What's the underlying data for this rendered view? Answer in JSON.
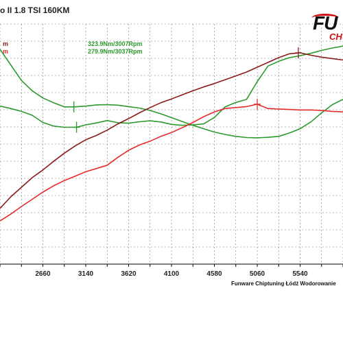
{
  "title": "o II  1.8 TSI 160KM",
  "footer": "Funware Chiptuning Łódź Wodorowanie",
  "logo": {
    "text1": "FU",
    "text2": "CH"
  },
  "annotations": {
    "green_peak_1": "323.9Nm/3007Rpm",
    "green_peak_2": "279.9Nm/3037Rpm",
    "left_clip_1": "m",
    "left_clip_2": "m"
  },
  "colors": {
    "tuned_torque": "#2b9a2b",
    "stock_torque": "#2b9a2b",
    "tuned_power": "#8b1a1a",
    "stock_power": "#e52a2a",
    "grid": "#000000"
  },
  "chart_data": {
    "type": "line",
    "xlabel": "",
    "ylabel": "",
    "x_ticks": [
      "2660",
      "3140",
      "3620",
      "4100",
      "4580",
      "5060",
      "5540"
    ],
    "xlim": [
      2180,
      6020
    ],
    "ylim": [
      0,
      1
    ],
    "grid": true,
    "series": [
      {
        "key": "tuned_torque",
        "color": "#2b9a2b",
        "x": [
          2180,
          2300,
          2420,
          2540,
          2660,
          2780,
          2900,
          3007,
          3140,
          3260,
          3380,
          3500,
          3620,
          3740,
          3860,
          3980,
          4100,
          4220,
          4340,
          4460,
          4580,
          4700,
          4820,
          4940,
          5060,
          5180,
          5300,
          5420,
          5540,
          5660,
          5780,
          5900,
          6020
        ],
        "y": [
          0.895,
          0.83,
          0.765,
          0.722,
          0.692,
          0.672,
          0.655,
          0.655,
          0.658,
          0.663,
          0.664,
          0.662,
          0.656,
          0.65,
          0.64,
          0.626,
          0.61,
          0.594,
          0.578,
          0.564,
          0.55,
          0.54,
          0.532,
          0.527,
          0.526,
          0.528,
          0.532,
          0.546,
          0.564,
          0.592,
          0.63,
          0.664,
          0.686
        ]
      },
      {
        "key": "stock_torque",
        "color": "#2b9a2b",
        "x": [
          2180,
          2300,
          2420,
          2540,
          2660,
          2780,
          2900,
          3037,
          3140,
          3260,
          3380,
          3500,
          3620,
          3740,
          3860,
          3980,
          4100,
          4220,
          4340,
          4460,
          4580,
          4700,
          4820,
          4940,
          5060,
          5180,
          5300,
          5420,
          5540,
          5660,
          5780,
          5900,
          6020
        ],
        "y": [
          0.658,
          0.648,
          0.636,
          0.62,
          0.59,
          0.575,
          0.57,
          0.57,
          0.58,
          0.588,
          0.598,
          0.589,
          0.587,
          0.593,
          0.597,
          0.592,
          0.582,
          0.578,
          0.58,
          0.584,
          0.611,
          0.655,
          0.673,
          0.686,
          0.76,
          0.825,
          0.845,
          0.86,
          0.868,
          0.878,
          0.89,
          0.9,
          0.908
        ]
      },
      {
        "key": "tuned_power",
        "color": "#8b1a1a",
        "x": [
          2180,
          2300,
          2420,
          2540,
          2660,
          2780,
          2900,
          3020,
          3140,
          3260,
          3380,
          3500,
          3620,
          3740,
          3860,
          3980,
          4100,
          4220,
          4340,
          4460,
          4580,
          4700,
          4820,
          4940,
          5060,
          5180,
          5300,
          5420,
          5540,
          5660,
          5780,
          5900,
          6020
        ],
        "y": [
          0.232,
          0.28,
          0.32,
          0.36,
          0.392,
          0.428,
          0.462,
          0.492,
          0.518,
          0.536,
          0.558,
          0.584,
          0.606,
          0.63,
          0.652,
          0.672,
          0.688,
          0.705,
          0.722,
          0.738,
          0.752,
          0.768,
          0.784,
          0.8,
          0.82,
          0.84,
          0.86,
          0.876,
          0.88,
          0.87,
          0.862,
          0.856,
          0.85
        ]
      },
      {
        "key": "stock_power",
        "color": "#e52a2a",
        "x": [
          2180,
          2300,
          2420,
          2540,
          2660,
          2780,
          2900,
          3020,
          3140,
          3260,
          3380,
          3500,
          3620,
          3740,
          3860,
          3980,
          4100,
          4220,
          4340,
          4460,
          4580,
          4700,
          4820,
          4940,
          5060,
          5180,
          5300,
          5420,
          5540,
          5660,
          5780,
          5900,
          6020
        ],
        "y": [
          0.18,
          0.208,
          0.24,
          0.27,
          0.3,
          0.326,
          0.348,
          0.366,
          0.385,
          0.398,
          0.412,
          0.445,
          0.474,
          0.496,
          0.512,
          0.532,
          0.548,
          0.568,
          0.59,
          0.614,
          0.634,
          0.648,
          0.652,
          0.656,
          0.666,
          0.648,
          0.646,
          0.644,
          0.642,
          0.642,
          0.64,
          0.636,
          0.634
        ]
      }
    ],
    "markers": [
      {
        "series": "tuned_torque",
        "x": 3007,
        "y": 0.655,
        "label_key": "green_peak_1"
      },
      {
        "series": "stock_torque",
        "x": 3037,
        "y": 0.57,
        "label_key": "green_peak_2"
      },
      {
        "series": "tuned_power",
        "x": 5520,
        "y": 0.88
      },
      {
        "series": "stock_power",
        "x": 5060,
        "y": 0.666
      }
    ]
  }
}
